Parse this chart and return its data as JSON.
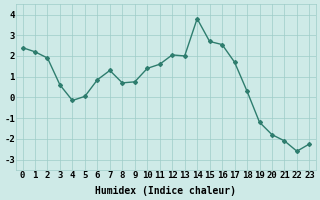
{
  "x": [
    0,
    1,
    2,
    3,
    4,
    5,
    6,
    7,
    8,
    9,
    10,
    11,
    12,
    13,
    14,
    15,
    16,
    17,
    18,
    19,
    20,
    21,
    22,
    23
  ],
  "y": [
    2.4,
    2.2,
    1.9,
    0.6,
    -0.15,
    0.05,
    0.85,
    1.3,
    0.7,
    0.75,
    1.4,
    1.6,
    2.05,
    2.0,
    3.8,
    2.7,
    2.55,
    1.7,
    0.3,
    -1.2,
    -1.8,
    -2.1,
    -2.6,
    -2.25
  ],
  "xlabel": "Humidex (Indice chaleur)",
  "xlim": [
    -0.5,
    23.5
  ],
  "ylim": [
    -3.5,
    4.5
  ],
  "yticks": [
    -3,
    -2,
    -1,
    0,
    1,
    2,
    3,
    4
  ],
  "xtick_labels": [
    "0",
    "1",
    "2",
    "3",
    "4",
    "5",
    "6",
    "7",
    "8",
    "9",
    "10",
    "11",
    "12",
    "13",
    "14",
    "15",
    "16",
    "17",
    "18",
    "19",
    "20",
    "21",
    "22",
    "23"
  ],
  "line_color": "#2e7d6e",
  "marker": "D",
  "marker_size": 2.0,
  "bg_color": "#ceeae7",
  "grid_color": "#9eccc8",
  "fig_bg": "#ceeae7",
  "label_fontsize": 7,
  "tick_fontsize": 6.5
}
